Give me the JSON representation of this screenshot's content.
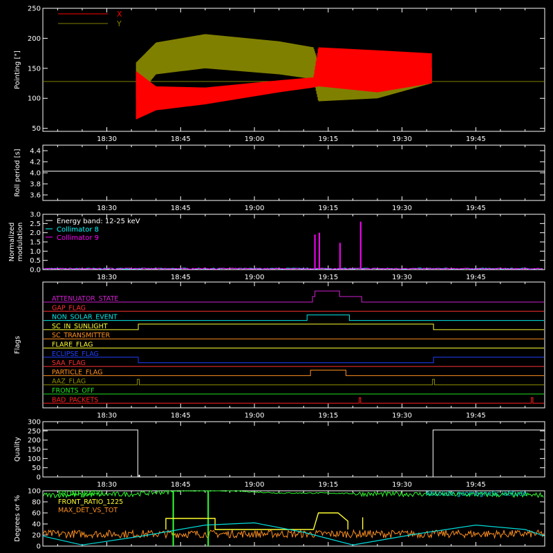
{
  "time_ticks": [
    "18:30",
    "18:45",
    "19:00",
    "19:15",
    "19:30",
    "19:45"
  ],
  "chart_data": [
    {
      "panel": "pointing",
      "type": "line",
      "ylabel": "Pointing [\"]",
      "ylim": [
        45,
        250
      ],
      "yticks": [
        50,
        100,
        150,
        200,
        250
      ],
      "legend": [
        {
          "name": "X",
          "color": "#ff0000"
        },
        {
          "name": "Y",
          "color": "#808000"
        }
      ],
      "x_range": [
        "18:17",
        "19:59"
      ],
      "baseline": 128,
      "series": [
        {
          "name": "Y",
          "x": [
            "18:36",
            "18:40",
            "18:50",
            "19:05",
            "19:12",
            "19:13",
            "19:25",
            "19:36"
          ],
          "lower": [
            100,
            140,
            150,
            140,
            132,
            95,
            100,
            125
          ],
          "upper": [
            160,
            193,
            207,
            195,
            185,
            160,
            170,
            150
          ]
        },
        {
          "name": "X",
          "x": [
            "18:36",
            "18:40",
            "18:50",
            "19:05",
            "19:12",
            "19:13",
            "19:25",
            "19:36"
          ],
          "lower": [
            65,
            80,
            90,
            110,
            118,
            120,
            110,
            125
          ],
          "upper": [
            145,
            120,
            118,
            130,
            135,
            185,
            180,
            175
          ]
        }
      ]
    },
    {
      "panel": "roll_period",
      "type": "line",
      "ylabel": "Roll period [s]",
      "ylim": [
        3.5,
        4.5
      ],
      "yticks": [
        "3.6",
        "3.8",
        "4.0",
        "4.2",
        "4.4"
      ],
      "series": [
        {
          "name": "Roll period",
          "x": [
            "18:17",
            "19:59"
          ],
          "y": [
            4.03,
            4.03
          ],
          "color": "#ffffff"
        }
      ]
    },
    {
      "panel": "modulation",
      "type": "line",
      "ylabel": "Normalized modulation",
      "ylim": [
        0,
        3.0
      ],
      "yticks": [
        "0.0",
        "0.5",
        "1.0",
        "1.5",
        "2.0",
        "2.5",
        "3.0"
      ],
      "legend": [
        {
          "name": "Energy band: 12-25 keV",
          "color": "#ffffff"
        },
        {
          "name": "Collimator 8",
          "color": "#00ffff"
        },
        {
          "name": "Collimator 9",
          "color": "#ff00ff"
        }
      ],
      "spikes": [
        {
          "x": "19:12.3",
          "y": 1.9
        },
        {
          "x": "19:13.2",
          "y": 2.0
        },
        {
          "x": "19:17.4",
          "y": 1.45
        },
        {
          "x": "19:21.6",
          "y": 2.6
        }
      ]
    },
    {
      "panel": "flags",
      "type": "line",
      "ylabel": "Flags",
      "flags": [
        {
          "name": "ATTENUATOR_STATE",
          "color": "#d020d0",
          "steps": [
            [
              "19:11.8",
              1
            ],
            [
              "19:12.3",
              2
            ],
            [
              "19:17.3",
              1
            ],
            [
              "19:21.8",
              0
            ]
          ]
        },
        {
          "name": "GAP_FLAG",
          "color": "#ff3030",
          "steps": []
        },
        {
          "name": "NON_SOLAR_EVENT",
          "color": "#00e8e8",
          "steps": [
            [
              "19:10.7",
              1
            ],
            [
              "19:19.3",
              0
            ]
          ]
        },
        {
          "name": "SC_IN_SUNLIGHT",
          "color": "#ffff30",
          "steps": [
            [
              "18:36.4",
              1
            ],
            [
              "19:36.4",
              0
            ]
          ]
        },
        {
          "name": "SC_TRANSMITTER",
          "color": "#ff9020",
          "steps": []
        },
        {
          "name": "FLARE_FLAG",
          "color": "#ffff30",
          "steps": []
        },
        {
          "name": "ECLIPSE_FLAG",
          "color": "#2040ff",
          "steps": [
            [
              "18:36.4",
              -1
            ],
            [
              "19:36.4",
              0
            ]
          ]
        },
        {
          "name": "SAA_FLAG",
          "color": "#ff3030",
          "steps": []
        },
        {
          "name": "PARTICLE_FLAG",
          "color": "#ff9020",
          "steps": [
            [
              "19:11.4",
              1
            ],
            [
              "19:18.6",
              0
            ]
          ]
        },
        {
          "name": "AAZ_FLAG",
          "color": "#909000",
          "steps": [
            [
              "18:36.2",
              1
            ],
            [
              "18:36.6",
              0
            ],
            [
              "19:36.2",
              1
            ],
            [
              "19:36.6",
              0
            ]
          ]
        },
        {
          "name": "FRONTS_OFF",
          "color": "#20e020",
          "steps": []
        },
        {
          "name": "BAD_PACKETS",
          "color": "#ff2020",
          "steps": [
            [
              "19:21.3",
              1
            ],
            [
              "19:21.6",
              0
            ],
            [
              "19:56.3",
              1
            ],
            [
              "19:56.6",
              0
            ]
          ]
        }
      ]
    },
    {
      "panel": "quality",
      "type": "line",
      "ylabel": "Quality",
      "ylim": [
        0,
        300
      ],
      "yticks": [
        0,
        50,
        100,
        150,
        200,
        250,
        300
      ],
      "series": [
        {
          "name": "Quality",
          "x": [
            "18:17",
            "18:36.3",
            "18:36.3",
            "19:36.3",
            "19:36.3",
            "19:59"
          ],
          "y": [
            255,
            255,
            0,
            0,
            255,
            255
          ],
          "color": "#ffffff"
        }
      ]
    },
    {
      "panel": "degrees",
      "type": "line",
      "ylabel": "Degrees or %",
      "ylim": [
        0,
        100
      ],
      "yticks": [
        0,
        20,
        40,
        60,
        80,
        100
      ],
      "legend": [
        {
          "name": "FRONT_RATIO",
          "color": "#30ff30"
        },
        {
          "name": "FRONT_RATIO_1225",
          "color": "#ffff30"
        },
        {
          "name": "MAX_DET_VS_TOT",
          "color": "#ff9020"
        },
        {
          "name": "Absolute geomagnetic latitude",
          "color": "#00e0e0"
        }
      ],
      "series": [
        {
          "name": "FRONT_RATIO",
          "color": "#30ff30",
          "x": [
            "18:17",
            "18:35",
            "18:45",
            "18:55",
            "19:05",
            "19:15",
            "19:25",
            "19:35",
            "19:59"
          ],
          "y": [
            92,
            94,
            100,
            100,
            96,
            96,
            94,
            94,
            92
          ]
        },
        {
          "name": "FRONT_RATIO_1225",
          "color": "#ffff30",
          "x": [
            "18:42",
            "18:42",
            "18:52",
            "18:52",
            "19:12",
            "19:13",
            "19:17",
            "19:19",
            "19:19"
          ],
          "y": [
            30,
            50,
            50,
            30,
            30,
            60,
            60,
            45,
            30
          ]
        },
        {
          "name": "MAX_DET_VS_TOT",
          "color": "#ff9020",
          "x": [
            "18:17",
            "19:59"
          ],
          "y": [
            24,
            22
          ]
        },
        {
          "name": "Absolute geomagnetic latitude",
          "color": "#00e0e0",
          "x": [
            "18:17",
            "18:25",
            "18:37",
            "18:50",
            "19:00",
            "19:10",
            "19:20",
            "19:33",
            "19:45",
            "19:55",
            "19:59"
          ],
          "y": [
            18,
            2,
            18,
            38,
            42,
            25,
            2,
            22,
            38,
            30,
            18
          ]
        }
      ]
    }
  ]
}
